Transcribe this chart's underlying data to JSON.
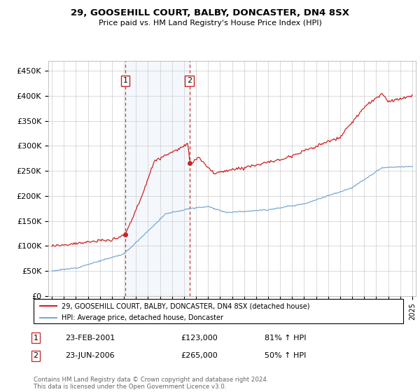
{
  "title": "29, GOOSEHILL COURT, BALBY, DONCASTER, DN4 8SX",
  "subtitle": "Price paid vs. HM Land Registry's House Price Index (HPI)",
  "ylabel_ticks": [
    "£0",
    "£50K",
    "£100K",
    "£150K",
    "£200K",
    "£250K",
    "£300K",
    "£350K",
    "£400K",
    "£450K"
  ],
  "ytick_values": [
    0,
    50000,
    100000,
    150000,
    200000,
    250000,
    300000,
    350000,
    400000,
    450000
  ],
  "ylim": [
    0,
    470000
  ],
  "hpi_color": "#7aa8d2",
  "price_color": "#cc2222",
  "vline_color": "#cc2222",
  "transaction1_year": 2001.12,
  "transaction1_price": 123000,
  "transaction2_year": 2006.46,
  "transaction2_price": 265000,
  "legend_label_price": "29, GOOSEHILL COURT, BALBY, DONCASTER, DN4 8SX (detached house)",
  "legend_label_hpi": "HPI: Average price, detached house, Doncaster",
  "footnote": "Contains HM Land Registry data © Crown copyright and database right 2024.\nThis data is licensed under the Open Government Licence v3.0.",
  "table_rows": [
    {
      "num": "1",
      "date": "23-FEB-2001",
      "price": "£123,000",
      "change": "81% ↑ HPI"
    },
    {
      "num": "2",
      "date": "23-JUN-2006",
      "price": "£265,000",
      "change": "50% ↑ HPI"
    }
  ]
}
